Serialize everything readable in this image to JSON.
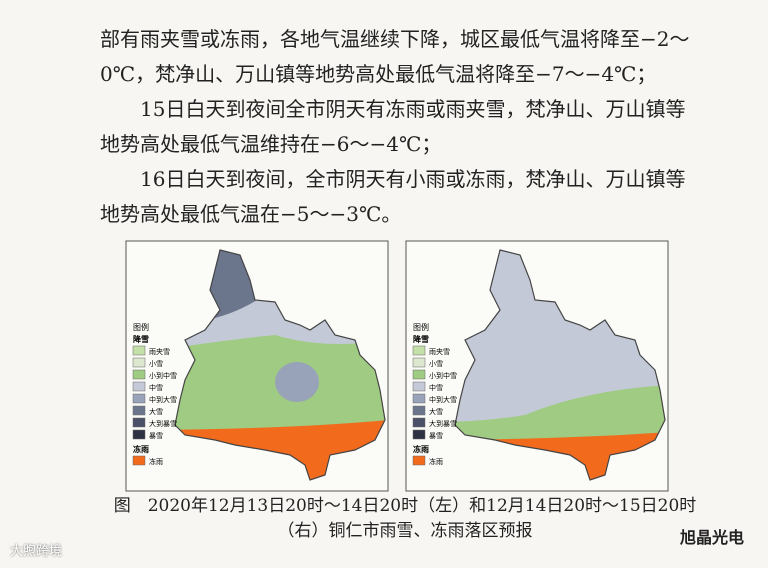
{
  "paragraphs": [
    "部有雨夹雪或冻雨，各地气温继续下降，城区最低气温将降至−2～0℃，梵净山、万山镇等地势高处最低气温将降至−7～−4℃；",
    "15日白天到夜间全市阴天有冻雨或雨夹雪，梵净山、万山镇等地势高处最低气温维持在−6～−4℃；",
    "16日白天到夜间，全市阴天有小雨或冻雨，梵净山、万山镇等地势高处最低气温在−5～−3℃。"
  ],
  "legend": {
    "title": "图例",
    "snow_heading": "降雪",
    "snow_items": [
      "雨夹雪",
      "小雪",
      "小到中雪",
      "中雪",
      "中到大雪",
      "大雪",
      "大到暴雪",
      "暴雪"
    ],
    "snow_colors": [
      "#c4dfa8",
      "#dde6cf",
      "#9fcb82",
      "#c3c9d6",
      "#98a2b8",
      "#6b768d",
      "#4a5168",
      "#2e3344"
    ],
    "freezing_heading": "冻雨",
    "freezing_items": [
      "冻雨"
    ],
    "freezing_colors": [
      "#f26b1d"
    ]
  },
  "caption": "图　2020年12月13日20时～14日20时（左）和12月14日20时～15日20时（右）铜仁市雨雪、冻雨落区预报",
  "watermarks": [
    "大煦跨境",
    "旭晶光电"
  ]
}
